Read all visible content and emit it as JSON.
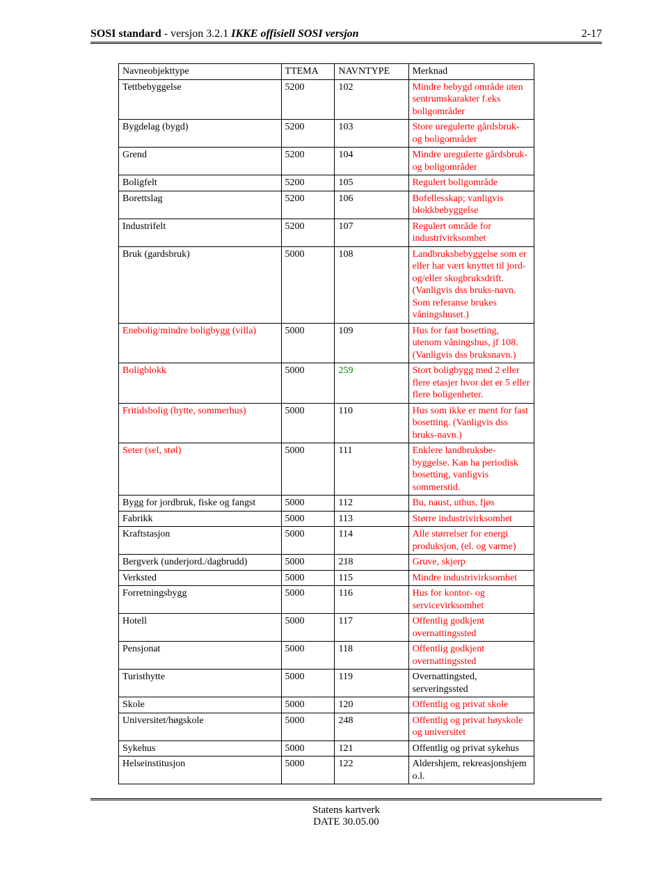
{
  "header": {
    "title_part1": "SOSI standard",
    "title_part2": " - versjon 3.2.1 ",
    "title_part3": "IKKE offisiell SOSI versjon",
    "page_number": "2-17"
  },
  "footer": {
    "line1": "Statens kartverk",
    "line2": "DATE 30.05.00"
  },
  "table": {
    "columns": [
      "Navneobjekttype",
      "TTEMA",
      "NAVNTYPE",
      "Merknad"
    ],
    "rows": [
      {
        "c0": {
          "t": "Tettbebyggelse",
          "c": "black"
        },
        "c1": {
          "t": "5200",
          "c": "black"
        },
        "c2": {
          "t": "102",
          "c": "black"
        },
        "c3": {
          "t": "Mindre bebygd område uten sentrumskarakter f.eks boligområder",
          "c": "red"
        }
      },
      {
        "c0": {
          "t": "Bygdelag (bygd)",
          "c": "black"
        },
        "c1": {
          "t": "5200",
          "c": "black"
        },
        "c2": {
          "t": "103",
          "c": "black"
        },
        "c3": {
          "t": "Store uregulerte gårdsbruk- og boligområder",
          "c": "red"
        }
      },
      {
        "c0": {
          "t": "Grend",
          "c": "black"
        },
        "c1": {
          "t": "5200",
          "c": "black"
        },
        "c2": {
          "t": "104",
          "c": "black"
        },
        "c3": {
          "t": "Mindre uregulerte gårdsbruk- og boligområder",
          "c": "red"
        }
      },
      {
        "c0": {
          "t": "Boligfelt",
          "c": "black"
        },
        "c1": {
          "t": "5200",
          "c": "black"
        },
        "c2": {
          "t": "105",
          "c": "black"
        },
        "c3": {
          "t": "Regulert boligområde",
          "c": "red"
        }
      },
      {
        "c0": {
          "t": "Borettslag",
          "c": "black"
        },
        "c1": {
          "t": "5200",
          "c": "black"
        },
        "c2": {
          "t": "106",
          "c": "black"
        },
        "c3": {
          "t": "Bofellesskap; vanligvis blokkbebyggelse",
          "c": "red"
        }
      },
      {
        "c0": {
          "t": "Industrifelt",
          "c": "black"
        },
        "c1": {
          "t": "5200",
          "c": "black"
        },
        "c2": {
          "t": "107",
          "c": "black"
        },
        "c3": {
          "t": "Regulert område for industrivirksomhet",
          "c": "red"
        }
      },
      {
        "c0": {
          "t": "Bruk (gardsbruk)",
          "c": "black"
        },
        "c1": {
          "t": "5000",
          "c": "black"
        },
        "c2": {
          "t": "108",
          "c": "black"
        },
        "c3": {
          "t": "Landbruksbebyggelse som er eller har vært knyttet til jord- og/eller skogbruksdrift. (Vanligvis dss bruks-navn. Som referanse brukes våningshuset.)",
          "c": "red"
        }
      },
      {
        "c0": {
          "t": "Enebolig/mindre boligbygg (villa)",
          "c": "red"
        },
        "c1": {
          "t": "5000",
          "c": "black"
        },
        "c2": {
          "t": "109",
          "c": "black"
        },
        "c3": {
          "t": "Hus for fast bosetting, utenom våningshus, jf 108. (Vanligvis dss bruksnavn.)",
          "c": "red"
        }
      },
      {
        "c0": {
          "t": "Boligblokk",
          "c": "red"
        },
        "c1": {
          "t": "5000",
          "c": "black"
        },
        "c2": {
          "t": "259",
          "c": "green"
        },
        "c3": {
          "t": "Stort boligbygg med 2 eller flere etasjer hvor det er 5 eller flere boligenheter.",
          "c": "red"
        }
      },
      {
        "c0": {
          "t": "Fritidsbolig (hytte, sommerhus)",
          "c": "red"
        },
        "c1": {
          "t": "5000",
          "c": "black"
        },
        "c2": {
          "t": "110",
          "c": "black"
        },
        "c3": {
          "t": "Hus som ikke er ment for fast bosetting. (Vanligvis dss bruks-navn.)",
          "c": "red"
        }
      },
      {
        "c0": {
          "t": "Seter (sel, støl)",
          "c": "red"
        },
        "c1": {
          "t": "5000",
          "c": "black"
        },
        "c2": {
          "t": "111",
          "c": "black"
        },
        "c3": {
          "t": "Enklere landbruksbe-byggelse. Kan ha periodisk bosetting, vanligvis sommerstid.",
          "c": "red"
        }
      },
      {
        "c0": {
          "t": "Bygg for jordbruk, fiske og fangst",
          "c": "black"
        },
        "c1": {
          "t": "5000",
          "c": "black"
        },
        "c2": {
          "t": "112",
          "c": "black"
        },
        "c3": {
          "t": "Bu, naust, uthus, fjøs",
          "c": "red"
        }
      },
      {
        "c0": {
          "t": "Fabrikk",
          "c": "black"
        },
        "c1": {
          "t": "5000",
          "c": "black"
        },
        "c2": {
          "t": "113",
          "c": "black"
        },
        "c3": {
          "t": "Større industrivirksomhet",
          "c": "red"
        }
      },
      {
        "c0": {
          "t": "Kraftstasjon",
          "c": "black"
        },
        "c1": {
          "t": "5000",
          "c": "black"
        },
        "c2": {
          "t": "114",
          "c": "black"
        },
        "c3": {
          "t": "Alle størrelser for energi produksjon, (el. og varme)",
          "c": "red"
        }
      },
      {
        "c0": {
          "t": "Bergverk (underjord./dagbrudd)",
          "c": "black"
        },
        "c1": {
          "t": "5000",
          "c": "black"
        },
        "c2": {
          "t": "218",
          "c": "black"
        },
        "c3": {
          "t": "Gruve, skjerp",
          "c": "red"
        }
      },
      {
        "c0": {
          "t": "Verksted",
          "c": "black"
        },
        "c1": {
          "t": "5000",
          "c": "black"
        },
        "c2": {
          "t": "115",
          "c": "black"
        },
        "c3": {
          "t": "Mindre industrivirksomhet",
          "c": "red"
        }
      },
      {
        "c0": {
          "t": "Forretningsbygg",
          "c": "black"
        },
        "c1": {
          "t": "5000",
          "c": "black"
        },
        "c2": {
          "t": "116",
          "c": "black"
        },
        "c3": {
          "t": "Hus for kontor- og servicevirksomhet",
          "c": "red"
        }
      },
      {
        "c0": {
          "t": "Hotell",
          "c": "black"
        },
        "c1": {
          "t": "5000",
          "c": "black"
        },
        "c2": {
          "t": "117",
          "c": "black"
        },
        "c3": {
          "t": "Offentlig godkjent overnattingssted",
          "c": "red"
        }
      },
      {
        "c0": {
          "t": "Pensjonat",
          "c": "black"
        },
        "c1": {
          "t": "5000",
          "c": "black"
        },
        "c2": {
          "t": "118",
          "c": "black"
        },
        "c3": {
          "t": "Offentlig godkjent overnattingssted",
          "c": "red"
        }
      },
      {
        "c0": {
          "t": "Turisthytte",
          "c": "black"
        },
        "c1": {
          "t": "5000",
          "c": "black"
        },
        "c2": {
          "t": "119",
          "c": "black"
        },
        "c3": {
          "t": "Overnattingsted, serveringssted",
          "c": "black"
        }
      },
      {
        "c0": {
          "t": "Skole",
          "c": "black"
        },
        "c1": {
          "t": "5000",
          "c": "black"
        },
        "c2": {
          "t": "120",
          "c": "black"
        },
        "c3": {
          "t": "Offentlig og privat skole",
          "c": "red"
        }
      },
      {
        "c0": {
          "t": "Universitet/høgskole",
          "c": "black"
        },
        "c1": {
          "t": "5000",
          "c": "black"
        },
        "c2": {
          "t": "248",
          "c": "black"
        },
        "c3": {
          "t": "Offentlig og privat høyskole og universitet",
          "c": "red"
        }
      },
      {
        "c0": {
          "t": "Sykehus",
          "c": "black"
        },
        "c1": {
          "t": "5000",
          "c": "black"
        },
        "c2": {
          "t": "121",
          "c": "black"
        },
        "c3": {
          "t": "Offentlig og privat sykehus",
          "c": "black"
        }
      },
      {
        "c0": {
          "t": "Helseinstitusjon",
          "c": "black"
        },
        "c1": {
          "t": "5000",
          "c": "black"
        },
        "c2": {
          "t": "122",
          "c": "black"
        },
        "c3": {
          "t": "Aldershjem, rekreasjonshjem o.l.",
          "c": "black"
        }
      }
    ]
  },
  "colors": {
    "black": "#000000",
    "red": "#ff0000",
    "green": "#008000"
  }
}
